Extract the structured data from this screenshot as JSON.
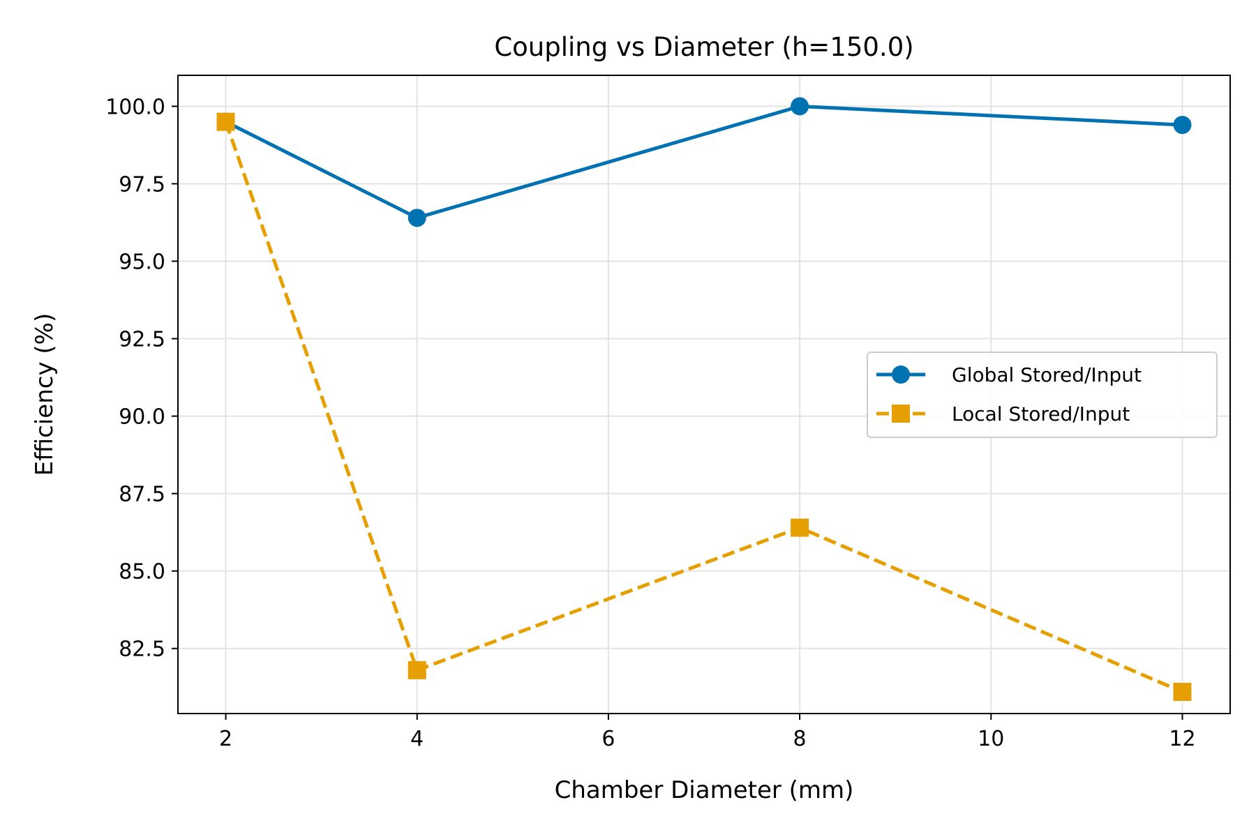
{
  "chart_data": {
    "type": "line",
    "title": "Coupling vs Diameter (h=150.0)",
    "xlabel": "Chamber Diameter (mm)",
    "ylabel": "Efficiency (%)",
    "x": [
      2,
      4,
      8,
      12
    ],
    "xlim": [
      1.5,
      12.5
    ],
    "ylim": [
      80.4,
      101.0
    ],
    "xticks": [
      2,
      4,
      6,
      8,
      10,
      12
    ],
    "xtick_labels": [
      "2",
      "4",
      "6",
      "8",
      "10",
      "12"
    ],
    "yticks": [
      82.5,
      85.0,
      87.5,
      90.0,
      92.5,
      95.0,
      97.5,
      100.0
    ],
    "ytick_labels": [
      "82.5",
      "85.0",
      "87.5",
      "90.0",
      "92.5",
      "95.0",
      "97.5",
      "100.0"
    ],
    "grid": true,
    "legend_position": "center-right",
    "series": [
      {
        "name": "Global Stored/Input",
        "values": [
          99.5,
          96.4,
          100.0,
          99.4
        ],
        "color": "#0072B2",
        "line_style": "solid",
        "marker": "circle"
      },
      {
        "name": "Local Stored/Input",
        "values": [
          99.5,
          81.8,
          86.4,
          81.1
        ],
        "color": "#E69F00",
        "line_style": "dashed",
        "marker": "square"
      }
    ]
  }
}
